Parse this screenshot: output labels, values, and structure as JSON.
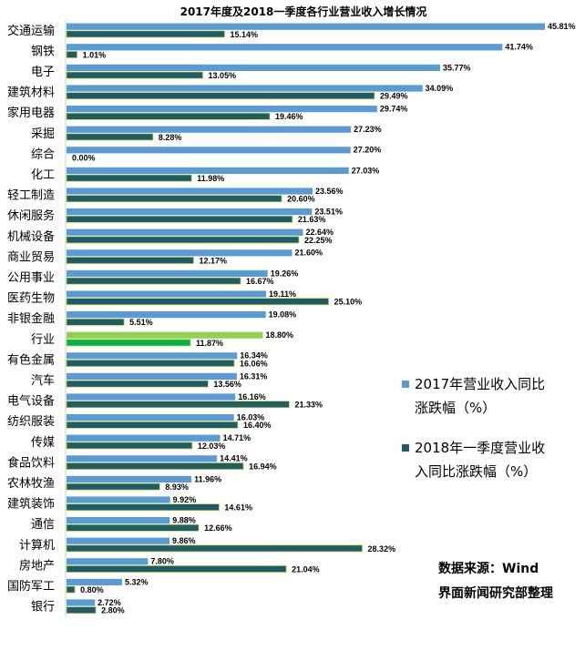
{
  "chart_data": {
    "type": "bar",
    "orientation": "horizontal",
    "title": "2017年度及2018一季度各行业营业收入增长情况",
    "categories": [
      "交通运输",
      "钢铁",
      "电子",
      "建筑材料",
      "家用电器",
      "采掘",
      "综合",
      "化工",
      "轻工制造",
      "休闲服务",
      "机械设备",
      "商业贸易",
      "公用事业",
      "医药生物",
      "非银金融",
      "行业",
      "有色金属",
      "汽车",
      "电气设备",
      "纺织服装",
      "传媒",
      "食品饮料",
      "农林牧渔",
      "建筑装饰",
      "通信",
      "计算机",
      "房地产",
      "国防军工",
      "银行"
    ],
    "series": [
      {
        "name": "2017年营业收入同比涨跌幅（%）",
        "color": "#5b9bd5",
        "values": [
          45.81,
          41.74,
          35.77,
          34.09,
          29.74,
          27.23,
          27.2,
          27.03,
          23.56,
          23.51,
          22.64,
          21.6,
          19.26,
          19.11,
          19.08,
          18.8,
          16.34,
          16.31,
          16.16,
          16.03,
          14.71,
          14.41,
          11.96,
          9.92,
          9.88,
          9.86,
          7.8,
          5.32,
          2.72
        ],
        "labels": [
          "45.81%",
          "41.74%",
          "35.77%",
          "34.09%",
          "29.74%",
          "27.23%",
          "27.20%",
          "27.03%",
          "23.56%",
          "23.51%",
          "22.64%",
          "21.60%",
          "19.26%",
          "19.11%",
          "19.08%",
          "18.80%",
          "16.34%",
          "16.31%",
          "16.16%",
          "16.03%",
          "14.71%",
          "14.41%",
          "11.96%",
          "9.92%",
          "9.88%",
          "9.86%",
          "7.80%",
          "5.32%",
          "2.72%"
        ]
      },
      {
        "name": "2018年一季度营业收入同比涨跌幅（%）",
        "color": "#1f5c6b",
        "values": [
          15.14,
          1.01,
          13.05,
          29.49,
          19.46,
          8.28,
          0.0,
          11.98,
          20.6,
          21.63,
          22.25,
          12.17,
          16.67,
          25.1,
          5.51,
          11.87,
          16.06,
          13.56,
          21.33,
          16.4,
          12.03,
          16.94,
          8.93,
          14.61,
          12.66,
          28.32,
          21.04,
          0.8,
          2.8
        ],
        "labels": [
          "15.14%",
          "1.01%",
          "13.05%",
          "29.49%",
          "19.46%",
          "8.28%",
          "0.00%",
          "11.98%",
          "20.60%",
          "21.63%",
          "22.25%",
          "12.17%",
          "16.67%",
          "25.10%",
          "5.51%",
          "11.87%",
          "16.06%",
          "13.56%",
          "21.33%",
          "16.40%",
          "12.03%",
          "16.94%",
          "8.93%",
          "14.61%",
          "12.66%",
          "28.32%",
          "21.04%",
          "0.80%",
          "2.80%"
        ]
      }
    ],
    "highlight": {
      "category": "行业",
      "colors": [
        "#92d050",
        "#00b050"
      ]
    },
    "bar_outline_color": "#c8d63a",
    "xlim": [
      0,
      46
    ],
    "grid": false,
    "legend": {
      "position": "right",
      "entries": [
        {
          "lines": [
            "2017年营业收入同比",
            "涨跌幅（%）"
          ],
          "color": "#5b9bd5"
        },
        {
          "lines": [
            "2018年一季度营业收",
            "入同比涨跌幅（%）"
          ],
          "color": "#1f5c6b"
        }
      ]
    }
  },
  "source_note": {
    "line1": "数据来源：Wind",
    "line2": "界面新闻研究部整理"
  }
}
